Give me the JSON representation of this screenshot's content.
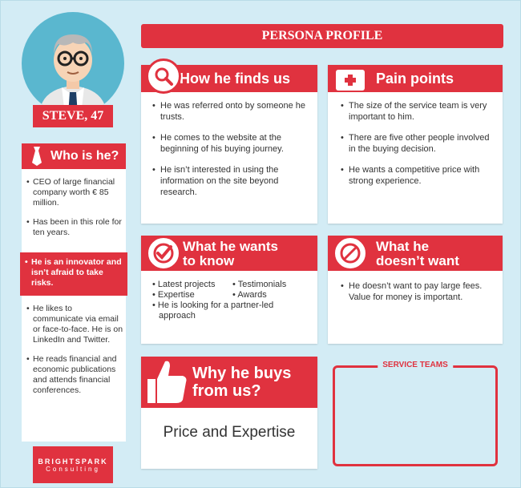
{
  "title": "PERSONA PROFILE",
  "persona": {
    "name": "STEVE, 47"
  },
  "who": {
    "heading": "Who is he?",
    "items": [
      "CEO of large financial company worth € 85 million.",
      "Has been in this role for ten years."
    ],
    "highlight": "He is an innovator and isn’t afraid to take risks.",
    "items_after": [
      "He likes to communicate via email or face-to-face. He is  on LinkedIn and Twitter.",
      "He reads financial and economic publications and attends financial conferences."
    ]
  },
  "finds": {
    "heading": "How he finds us",
    "items": [
      "He was referred onto by someone he trusts.",
      "He comes to the website at the beginning of his buying journey.",
      "He isn’t interested in using the information on the site beyond research."
    ]
  },
  "pain": {
    "heading": "Pain points",
    "items": [
      "The size of the service team is very important to him.",
      "There are five other people involved in the buying decision.",
      "He wants a competitive price with strong experience."
    ]
  },
  "wants": {
    "heading_line1": "What he wants",
    "heading_line2": "to know",
    "col1": [
      "Latest projects",
      "Expertise"
    ],
    "col2": [
      "Testimonials",
      "Awards"
    ],
    "full": "He is looking for a partner-led approach"
  },
  "dontwant": {
    "heading_line1": "What he",
    "heading_line2": "doesn’t want",
    "items": [
      "He doesn’t want to pay large fees. Value for money is important."
    ]
  },
  "why": {
    "heading_line1": "Why he buys",
    "heading_line2": "from us?",
    "answer": "Price and Expertise"
  },
  "service": {
    "label": "SERVICE TEAMS"
  },
  "brand": {
    "line1": "BRIGHTSPARK",
    "line2": "Consulting"
  },
  "colors": {
    "accent": "#e0323f",
    "background": "#d3ecf5",
    "avatar_bg": "#5ab7cf"
  }
}
